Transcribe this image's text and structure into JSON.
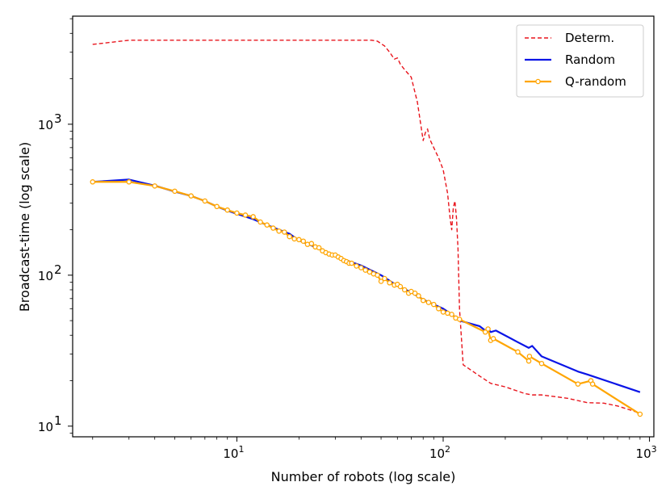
{
  "chart_data": {
    "type": "line",
    "xlabel": "Number of robots (log scale)",
    "ylabel": "Broadcast-time (log scale)",
    "xscale": "log",
    "yscale": "log",
    "xlim": [
      1.6,
      1050
    ],
    "ylim": [
      8.5,
      5200
    ],
    "grid": false,
    "legend_position": "top-right",
    "x_ticks": [
      {
        "value": 10,
        "base": "10",
        "exp": "1"
      },
      {
        "value": 100,
        "base": "10",
        "exp": "2"
      },
      {
        "value": 1000,
        "base": "10",
        "exp": "3"
      }
    ],
    "y_ticks": [
      {
        "value": 10,
        "base": "10",
        "exp": "1"
      },
      {
        "value": 100,
        "base": "10",
        "exp": "2"
      },
      {
        "value": 1000,
        "base": "10",
        "exp": "3"
      }
    ],
    "series": [
      {
        "name": "Determ.",
        "color": "#e8141c",
        "style": "dashed",
        "marker": false,
        "x": [
          2,
          3,
          5,
          10,
          20,
          30,
          40,
          45,
          48,
          52,
          55,
          58,
          60,
          62,
          65,
          70,
          75,
          80,
          82,
          84,
          86,
          90,
          95,
          100,
          105,
          108,
          110,
          112,
          114,
          116,
          118,
          120,
          125,
          150,
          170,
          200,
          250,
          270,
          300,
          400,
          500,
          600,
          700,
          900
        ],
        "y": [
          3380,
          3600,
          3600,
          3600,
          3600,
          3600,
          3600,
          3600,
          3550,
          3300,
          3000,
          2700,
          2750,
          2500,
          2300,
          2050,
          1400,
          780,
          880,
          930,
          800,
          700,
          600,
          500,
          350,
          240,
          200,
          280,
          310,
          240,
          150,
          60,
          25.5,
          21.5,
          19.2,
          18.2,
          16.4,
          16.1,
          16.1,
          15.3,
          14.3,
          14.2,
          13.6,
          12.2
        ]
      },
      {
        "name": "Random",
        "color": "#0a14e6",
        "style": "solid",
        "marker": false,
        "x": [
          2,
          3,
          4,
          5,
          6,
          7,
          8,
          9,
          10,
          12,
          14,
          16,
          18,
          20,
          25,
          30,
          40,
          50,
          60,
          70,
          80,
          90,
          100,
          110,
          120,
          150,
          160,
          165,
          170,
          180,
          230,
          260,
          270,
          300,
          450,
          500,
          900
        ],
        "y": [
          415,
          430,
          392,
          358,
          335,
          310,
          285,
          268,
          255,
          235,
          215,
          200,
          188,
          170,
          150,
          133,
          116,
          100,
          85,
          77,
          69,
          64,
          60,
          55,
          50,
          46,
          43,
          44,
          42,
          43,
          36,
          33,
          34,
          29,
          23,
          22,
          16.8
        ]
      },
      {
        "name": "Q-random",
        "color": "#ffa500",
        "style": "solid",
        "marker": true,
        "x": [
          2,
          3,
          4,
          5,
          6,
          7,
          8,
          9,
          10,
          11,
          12,
          13,
          14,
          15,
          16,
          17,
          18,
          19,
          20,
          21,
          22,
          23,
          24,
          25,
          26,
          27,
          28,
          29,
          30,
          31,
          32,
          33,
          34,
          35,
          36,
          38,
          40,
          42,
          44,
          46,
          48,
          50,
          52,
          55,
          58,
          60,
          62,
          65,
          68,
          70,
          73,
          76,
          80,
          85,
          90,
          95,
          100,
          105,
          110,
          115,
          120,
          160,
          165,
          170,
          175,
          230,
          260,
          262,
          300,
          450,
          520,
          530,
          900
        ],
        "y": [
          415,
          415,
          390,
          360,
          335,
          310,
          285,
          270,
          258,
          250,
          244,
          225,
          215,
          205,
          196,
          193,
          180,
          174,
          172,
          168,
          160,
          162,
          154,
          152,
          145,
          141,
          138,
          136,
          136,
          132,
          129,
          125,
          123,
          120,
          120,
          115,
          112,
          108,
          105,
          102,
          100,
          91,
          95,
          89,
          86,
          87,
          84,
          80,
          76,
          78,
          76,
          73,
          68,
          66,
          64,
          60,
          57,
          56,
          55,
          52,
          51,
          42,
          44,
          37,
          38,
          31,
          27,
          29,
          26,
          19,
          20,
          19,
          12
        ]
      }
    ]
  }
}
